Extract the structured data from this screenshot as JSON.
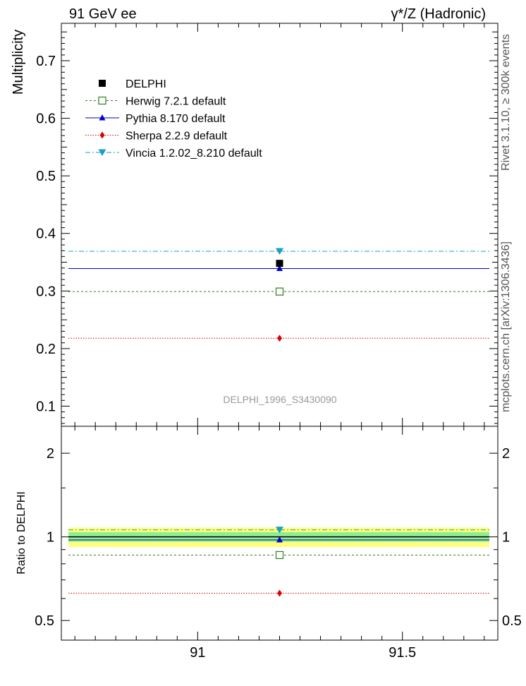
{
  "header": {
    "left_title": "91 GeV ee",
    "right_title": "γ*/Z (Hadronic)"
  },
  "side": {
    "rivet": "Rivet 3.1.10, ≥ 300k events",
    "mcplots": "mcplots.cern.ch [arXiv:1306.3436]"
  },
  "watermark": "DELPHI_1996_S3430090",
  "chart_data": [
    {
      "type": "line",
      "title": "91 GeV ee",
      "ylabel": "Multiplicity",
      "xlim": [
        90.667,
        91.733
      ],
      "ylim": [
        0.065,
        0.765
      ],
      "ytick_labels": [
        "0.1",
        "0.2",
        "0.3",
        "0.4",
        "0.5",
        "0.6",
        "0.7"
      ],
      "legend_position": "top-left",
      "series": [
        {
          "name": "DELPHI",
          "style": "data",
          "color": "#000000",
          "x": 91.2,
          "y": 0.348
        },
        {
          "name": "Herwig 7.2.1 default",
          "style": "dotted",
          "marker": "open-square",
          "color": "#2e7d1a",
          "x": 91.2,
          "y": 0.299
        },
        {
          "name": "Pythia 8.170 default",
          "style": "solid",
          "marker": "triangle-up",
          "color": "#0000cc",
          "x": 91.2,
          "y": 0.339
        },
        {
          "name": "Sherpa 2.2.9 default",
          "style": "dotted-fine",
          "marker": "diamond",
          "color": "#dd0000",
          "x": 91.2,
          "y": 0.218
        },
        {
          "name": "Vincia 1.2.02_8.210 default",
          "style": "dashdot",
          "marker": "triangle-down",
          "color": "#1aa0c0",
          "x": 91.2,
          "y": 0.369
        }
      ]
    },
    {
      "type": "line",
      "ylabel": "Ratio to DELPHI",
      "xlabel": "",
      "xlim": [
        90.667,
        91.733
      ],
      "ylim": [
        0.425,
        2.5
      ],
      "yscale": "log",
      "ytick_labels": [
        "0.5",
        "1",
        "2"
      ],
      "xtick_labels": [
        "91",
        "91.5"
      ],
      "bands": [
        {
          "name": "DELPHI total uncertainty",
          "color": "#ffff7a",
          "lo": 0.92,
          "hi": 1.08
        },
        {
          "name": "DELPHI stat uncertainty",
          "color": "#90ee90",
          "lo": 0.96,
          "hi": 1.04
        }
      ],
      "series": [
        {
          "name": "Herwig 7.2.1 default",
          "x": 91.2,
          "y": 0.86
        },
        {
          "name": "Pythia 8.170 default",
          "x": 91.2,
          "y": 0.975
        },
        {
          "name": "Sherpa 2.2.9 default",
          "x": 91.2,
          "y": 0.627
        },
        {
          "name": "Vincia 1.2.02_8.210 default",
          "x": 91.2,
          "y": 1.06
        }
      ]
    }
  ]
}
